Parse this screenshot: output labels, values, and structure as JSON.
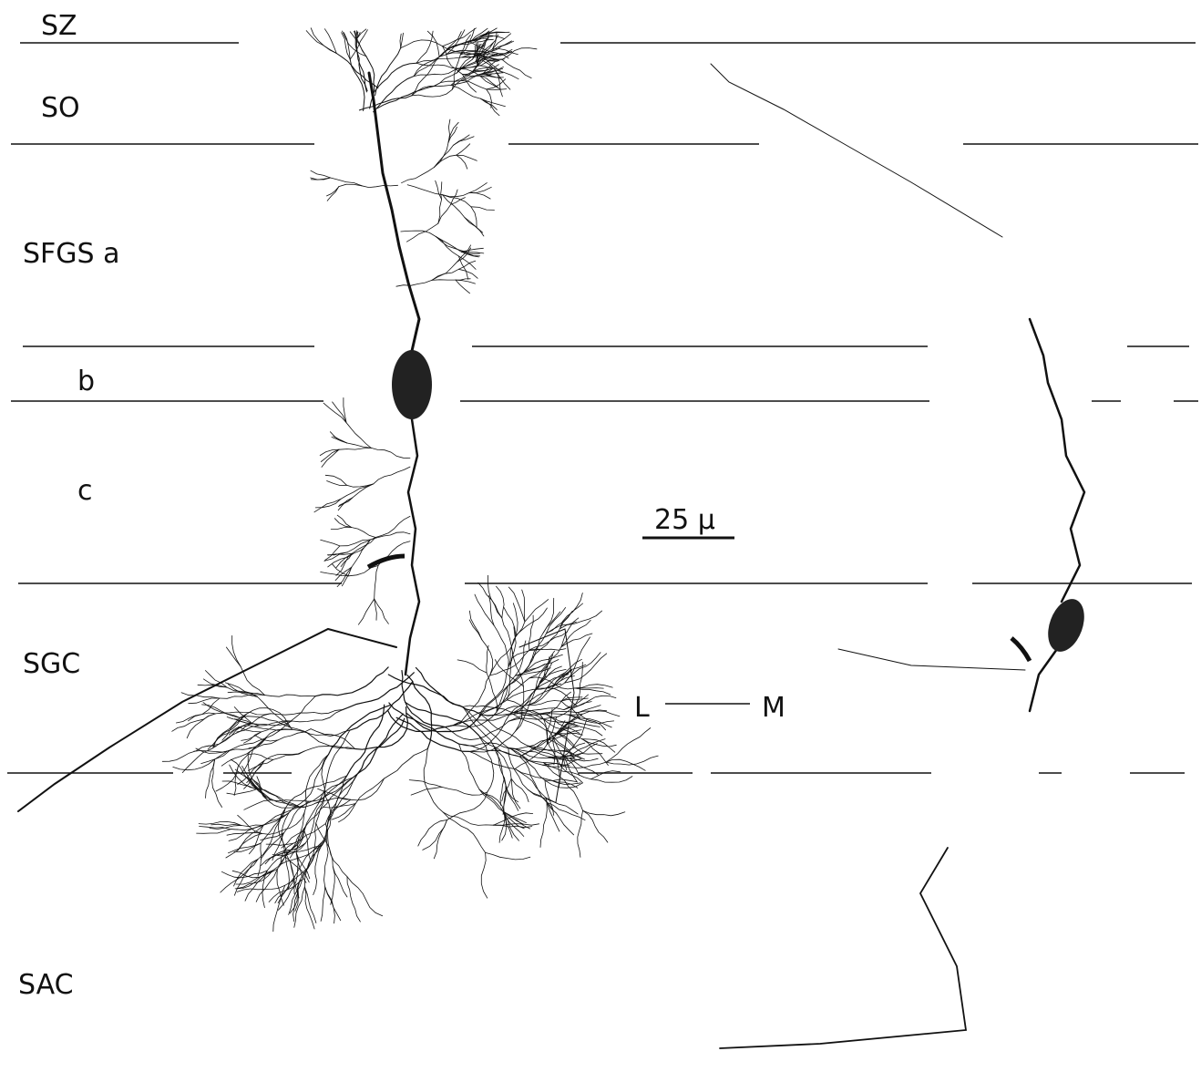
{
  "layers": [
    {
      "label": "SZ"
    },
    {
      "label": "SO"
    },
    {
      "label": "SFGS a"
    },
    {
      "label": "b"
    },
    {
      "label": "c"
    },
    {
      "label": "SGC"
    },
    {
      "label": "SAC"
    }
  ],
  "scale_bar": {
    "label": "25 μ"
  },
  "orientation": {
    "left": "L",
    "right": "M"
  }
}
